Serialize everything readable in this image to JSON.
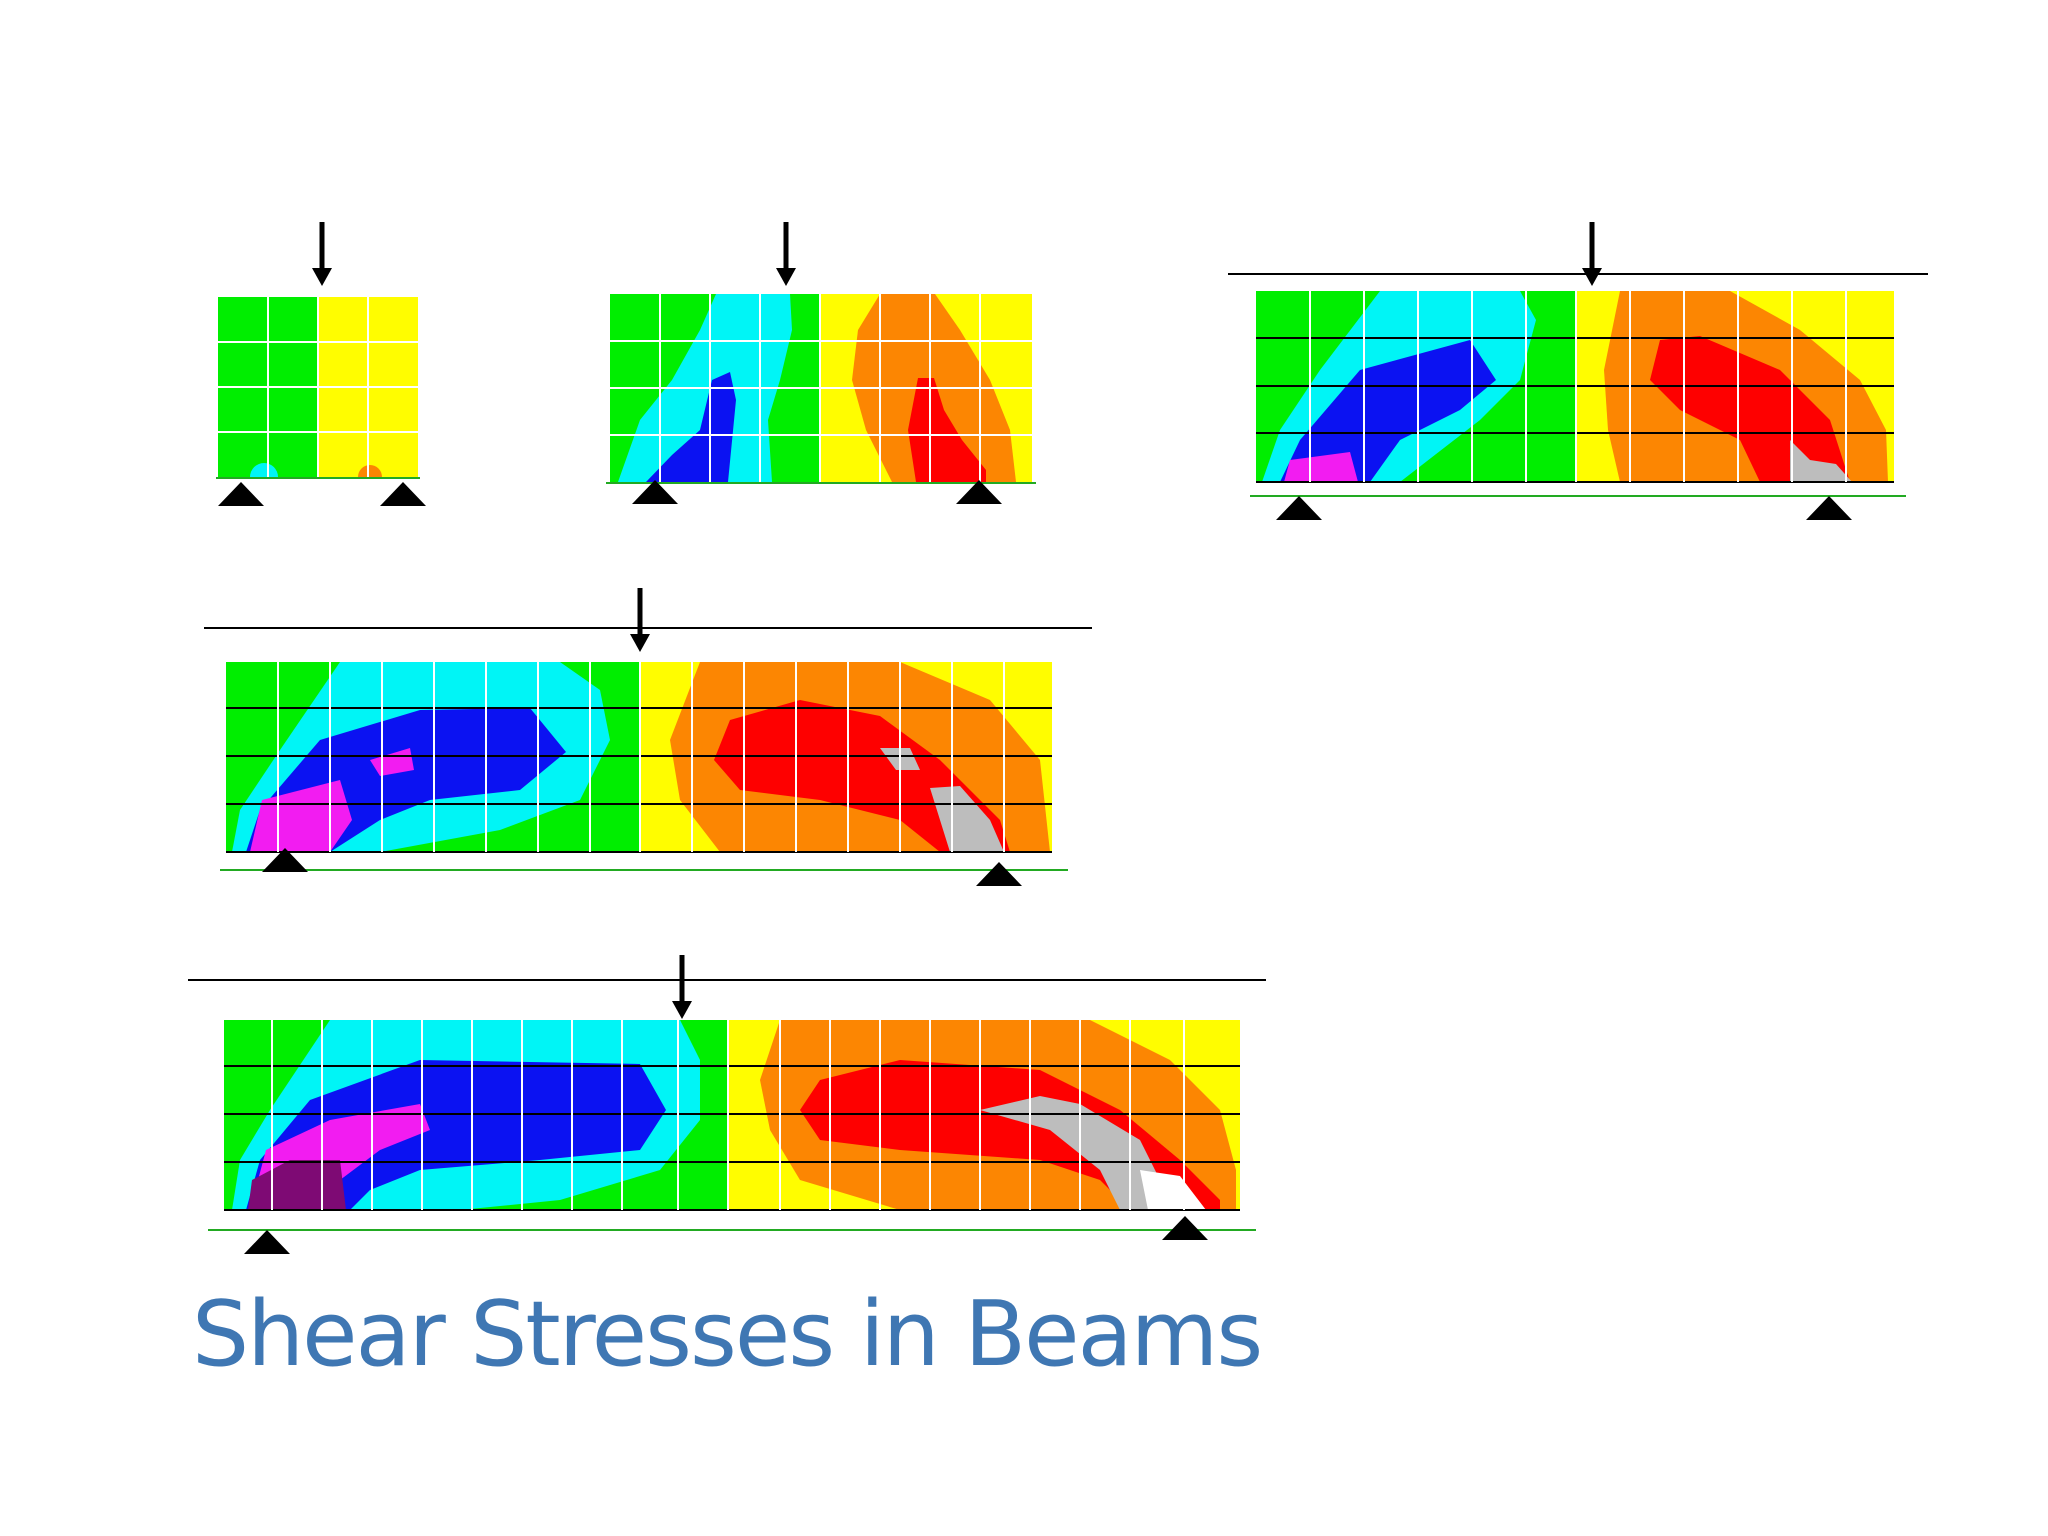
{
  "slide": {
    "title": "Shear Stresses in Beams"
  },
  "legend_colors": {
    "dark_purple": "#7e0a74",
    "magenta": "#f21cf1",
    "blue": "#0b12f2",
    "cyan": "#00f5f6",
    "green": "#00ee00",
    "yellow": "#fffd00",
    "orange": "#fc8602",
    "red": "#fe0000",
    "grey": "#bdbdbd",
    "white": "#ffffff"
  },
  "diagram": {
    "description_items": [
      {
        "id": "beam-1",
        "load": "point-load-arrow",
        "supports": "two-pin-supports"
      },
      {
        "id": "beam-2",
        "load": "point-load-arrow",
        "supports": "two-pin-supports"
      },
      {
        "id": "beam-3",
        "load": "point-load-arrow",
        "supports": "two-pin-supports"
      },
      {
        "id": "beam-4",
        "load": "point-load-arrow",
        "supports": "two-pin-supports"
      },
      {
        "id": "beam-5",
        "load": "point-load-arrow",
        "supports": "two-pin-supports"
      }
    ]
  }
}
